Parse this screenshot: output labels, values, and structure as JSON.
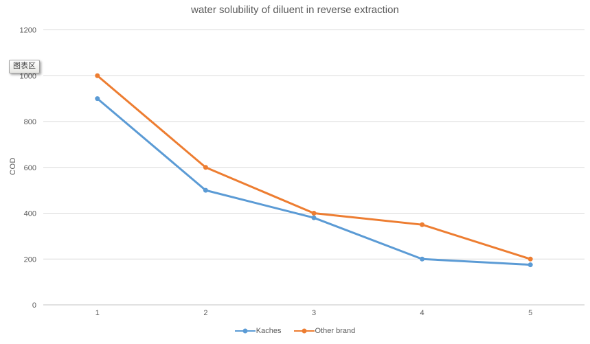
{
  "tooltip": {
    "label": "图表区"
  },
  "chart_data": {
    "type": "line",
    "title": "water solubility of diluent in reverse extraction",
    "xlabel": "",
    "ylabel": "COD",
    "categories": [
      "1",
      "2",
      "3",
      "4",
      "5"
    ],
    "series": [
      {
        "name": "Kaches",
        "color": "#5B9BD5",
        "values": [
          900,
          500,
          380,
          200,
          175
        ]
      },
      {
        "name": "Other brand",
        "color": "#ED7D31",
        "values": [
          1000,
          600,
          400,
          350,
          200
        ]
      }
    ],
    "ylim": [
      0,
      1200
    ],
    "y_ticks": [
      0,
      200,
      400,
      600,
      800,
      1000,
      1200
    ],
    "grid": true,
    "legend_position": "bottom",
    "colors": {
      "gridline": "#D9D9D9",
      "axis_line": "#C3C3C3",
      "tick_label": "#595959",
      "title": "#595959"
    }
  }
}
